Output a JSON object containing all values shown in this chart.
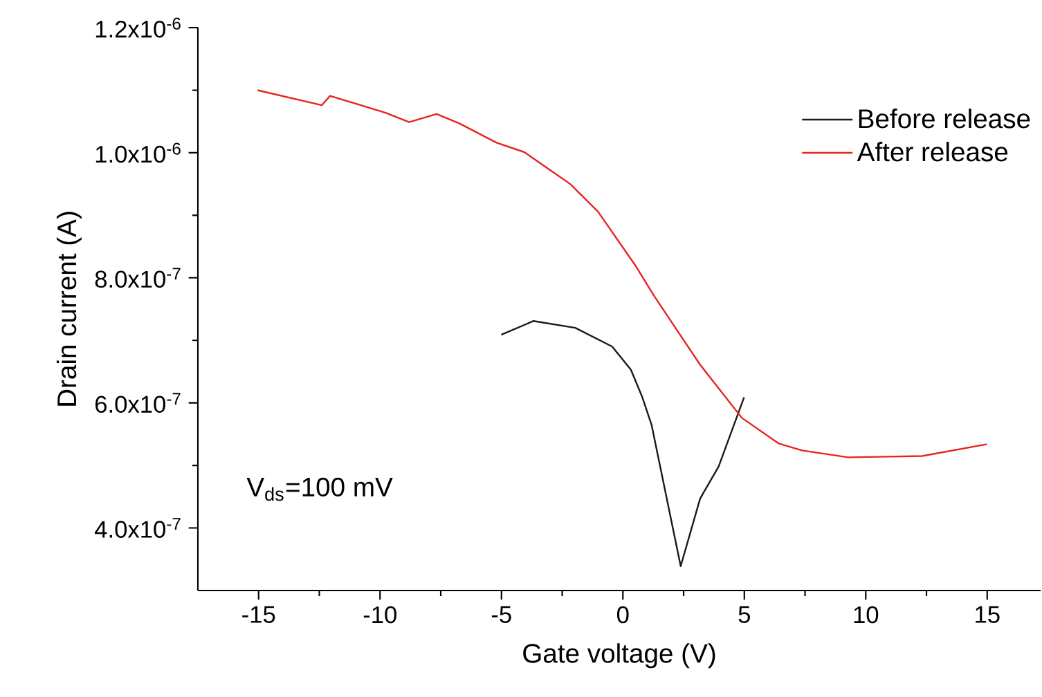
{
  "chart_data": {
    "type": "line",
    "xlabel": "Gate voltage (V)",
    "ylabel": "Drain current (A)",
    "xlim": [
      -17.5,
      17.2
    ],
    "ylim": [
      3e-07,
      1.2e-06
    ],
    "xticks": [
      -15,
      -10,
      -5,
      0,
      5,
      10,
      15
    ],
    "yticks": [
      {
        "value": 4e-07,
        "label": "4.0x10$^{-7}$"
      },
      {
        "value": 6e-07,
        "label": "6.0x10$^{-7}$"
      },
      {
        "value": 8e-07,
        "label": "8.0x10$^{-7}$"
      },
      {
        "value": 1e-06,
        "label": "1.0x10$^{-6}$"
      },
      {
        "value": 1.2e-06,
        "label": "1.2x10$^{-6}$"
      }
    ],
    "grid": false,
    "legend": "top right",
    "marker": "none",
    "line_style": "solid",
    "annotations": [
      "V$_{ds}$=100 mV"
    ],
    "series": [
      {
        "name": "Before release",
        "color": "#1a1a1a",
        "x": [
          -5.01,
          -3.68,
          -1.96,
          -0.44,
          0.33,
          0.8,
          1.18,
          2.38,
          3.18,
          3.94,
          4.99
        ],
        "values": [
          7.09e-07,
          7.31e-07,
          7.2e-07,
          6.9e-07,
          6.53e-07,
          6.09e-07,
          5.65e-07,
          3.39e-07,
          4.47e-07,
          4.98e-07,
          6.09e-07
        ]
      },
      {
        "name": "After release",
        "color": "#e8231c",
        "x": [
          -15.04,
          -12.4,
          -12.06,
          -9.77,
          -8.8,
          -7.67,
          -6.74,
          -5.2,
          -4.06,
          -2.17,
          -1.03,
          0.51,
          1.27,
          3.18,
          4.9,
          6.42,
          7.37,
          9.27,
          12.32,
          14.99
        ],
        "values": [
          1.1e-06,
          1.076e-06,
          1.091e-06,
          1.064e-06,
          1.049e-06,
          1.062e-06,
          1.047e-06,
          1.016e-06,
          1.001e-06,
          9.5e-07,
          9.06e-07,
          8.2e-07,
          7.72e-07,
          6.61e-07,
          5.76e-07,
          5.35e-07,
          5.24e-07,
          5.13e-07,
          5.15e-07,
          5.34e-07
        ]
      }
    ]
  }
}
